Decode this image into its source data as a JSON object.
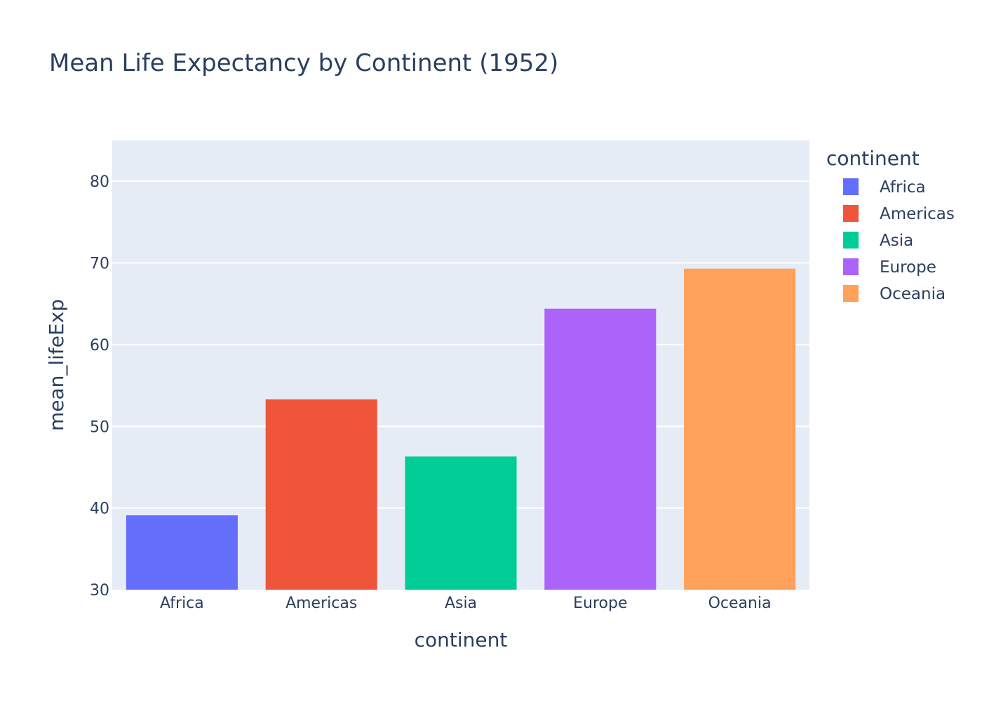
{
  "chart_data": {
    "type": "bar",
    "title": "Mean Life Expectancy by Continent (1952)",
    "xlabel": "continent",
    "ylabel": "mean_lifeExp",
    "categories": [
      "Africa",
      "Americas",
      "Asia",
      "Europe",
      "Oceania"
    ],
    "values": [
      39.1,
      53.3,
      46.3,
      64.4,
      69.3
    ],
    "colors": [
      "#636efa",
      "#ef553b",
      "#00cc96",
      "#ab63fa",
      "#ffa15a"
    ],
    "ylim": [
      30,
      85
    ],
    "yticks": [
      30,
      40,
      50,
      60,
      70,
      80
    ],
    "grid": true,
    "plot_background": "#e5ecf6",
    "legend": {
      "title": "continent",
      "placement": "top-right",
      "entries": [
        "Africa",
        "Americas",
        "Asia",
        "Europe",
        "Oceania"
      ]
    }
  }
}
